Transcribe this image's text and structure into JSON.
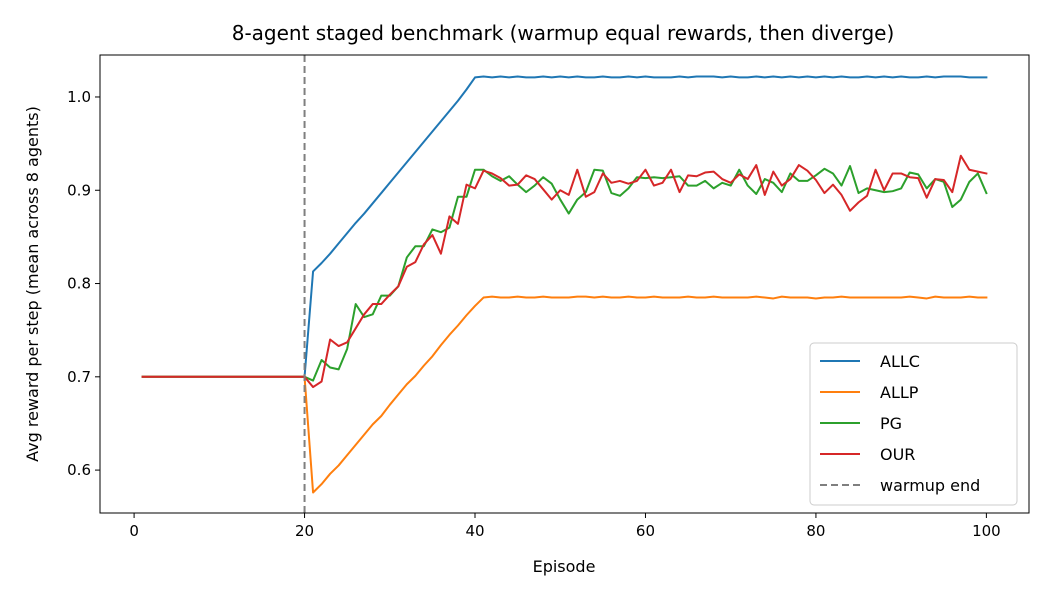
{
  "chart_data": {
    "type": "line",
    "title": "8-agent staged benchmark (warmup equal rewards, then diverge)",
    "xlabel": "Episode",
    "ylabel": "Avg reward per step (mean across 8 agents)",
    "xlim": [
      -4,
      105
    ],
    "ylim": [
      0.554,
      1.045
    ],
    "xticks": [
      0,
      20,
      40,
      60,
      80,
      100
    ],
    "yticks": [
      0.6,
      0.7,
      0.8,
      0.9,
      1.0
    ],
    "ytick_labels": [
      "0.6",
      "0.7",
      "0.8",
      "0.9",
      "1.0"
    ],
    "grid": false,
    "legend_position": "lower-right",
    "vline": {
      "x": 20,
      "label": "warmup end",
      "color": "#7f7f7f",
      "style": "dashed"
    },
    "series": [
      {
        "name": "ALLC",
        "color": "#1f77b4",
        "x": [
          1,
          2,
          3,
          4,
          5,
          6,
          7,
          8,
          9,
          10,
          11,
          12,
          13,
          14,
          15,
          16,
          17,
          18,
          19,
          20,
          21,
          22,
          23,
          24,
          25,
          26,
          27,
          28,
          29,
          30,
          31,
          32,
          33,
          34,
          35,
          36,
          37,
          38,
          39,
          40,
          41,
          42,
          43,
          44,
          45,
          46,
          47,
          48,
          49,
          50,
          51,
          52,
          53,
          54,
          55,
          56,
          57,
          58,
          59,
          60,
          61,
          62,
          63,
          64,
          65,
          66,
          67,
          68,
          69,
          70,
          71,
          72,
          73,
          74,
          75,
          76,
          77,
          78,
          79,
          80,
          81,
          82,
          83,
          84,
          85,
          86,
          87,
          88,
          89,
          90,
          91,
          92,
          93,
          94,
          95,
          96,
          97,
          98,
          99,
          100
        ],
        "y": [
          0.7,
          0.7,
          0.7,
          0.7,
          0.7,
          0.7,
          0.7,
          0.7,
          0.7,
          0.7,
          0.7,
          0.7,
          0.7,
          0.7,
          0.7,
          0.7,
          0.7,
          0.7,
          0.7,
          0.7,
          0.813,
          0.822,
          0.832,
          0.843,
          0.854,
          0.865,
          0.875,
          0.886,
          0.897,
          0.908,
          0.919,
          0.93,
          0.941,
          0.952,
          0.963,
          0.974,
          0.985,
          0.996,
          1.008,
          1.021,
          1.022,
          1.021,
          1.022,
          1.021,
          1.022,
          1.021,
          1.021,
          1.022,
          1.021,
          1.022,
          1.021,
          1.022,
          1.021,
          1.021,
          1.022,
          1.021,
          1.021,
          1.022,
          1.021,
          1.022,
          1.021,
          1.021,
          1.021,
          1.022,
          1.021,
          1.022,
          1.022,
          1.022,
          1.021,
          1.022,
          1.021,
          1.021,
          1.022,
          1.021,
          1.022,
          1.021,
          1.022,
          1.021,
          1.022,
          1.021,
          1.022,
          1.021,
          1.022,
          1.021,
          1.021,
          1.022,
          1.021,
          1.022,
          1.021,
          1.022,
          1.021,
          1.021,
          1.022,
          1.021,
          1.022,
          1.022,
          1.022,
          1.021,
          1.021,
          1.021
        ]
      },
      {
        "name": "ALLP",
        "color": "#ff7f0e",
        "x": [
          1,
          2,
          3,
          4,
          5,
          6,
          7,
          8,
          9,
          10,
          11,
          12,
          13,
          14,
          15,
          16,
          17,
          18,
          19,
          20,
          21,
          22,
          23,
          24,
          25,
          26,
          27,
          28,
          29,
          30,
          31,
          32,
          33,
          34,
          35,
          36,
          37,
          38,
          39,
          40,
          41,
          42,
          43,
          44,
          45,
          46,
          47,
          48,
          49,
          50,
          51,
          52,
          53,
          54,
          55,
          56,
          57,
          58,
          59,
          60,
          61,
          62,
          63,
          64,
          65,
          66,
          67,
          68,
          69,
          70,
          71,
          72,
          73,
          74,
          75,
          76,
          77,
          78,
          79,
          80,
          81,
          82,
          83,
          84,
          85,
          86,
          87,
          88,
          89,
          90,
          91,
          92,
          93,
          94,
          95,
          96,
          97,
          98,
          99,
          100
        ],
        "y": [
          0.7,
          0.7,
          0.7,
          0.7,
          0.7,
          0.7,
          0.7,
          0.7,
          0.7,
          0.7,
          0.7,
          0.7,
          0.7,
          0.7,
          0.7,
          0.7,
          0.7,
          0.7,
          0.7,
          0.7,
          0.576,
          0.585,
          0.596,
          0.605,
          0.616,
          0.627,
          0.638,
          0.649,
          0.658,
          0.67,
          0.681,
          0.692,
          0.701,
          0.712,
          0.722,
          0.734,
          0.745,
          0.755,
          0.766,
          0.776,
          0.785,
          0.786,
          0.785,
          0.785,
          0.786,
          0.785,
          0.785,
          0.786,
          0.785,
          0.785,
          0.785,
          0.786,
          0.786,
          0.785,
          0.786,
          0.785,
          0.785,
          0.786,
          0.785,
          0.785,
          0.786,
          0.785,
          0.785,
          0.785,
          0.786,
          0.785,
          0.785,
          0.786,
          0.785,
          0.785,
          0.785,
          0.785,
          0.786,
          0.785,
          0.784,
          0.786,
          0.785,
          0.785,
          0.785,
          0.784,
          0.785,
          0.785,
          0.786,
          0.785,
          0.785,
          0.785,
          0.785,
          0.785,
          0.785,
          0.785,
          0.786,
          0.785,
          0.784,
          0.786,
          0.785,
          0.785,
          0.785,
          0.786,
          0.785,
          0.785
        ]
      },
      {
        "name": "PG",
        "color": "#2ca02c",
        "x": [
          1,
          2,
          3,
          4,
          5,
          6,
          7,
          8,
          9,
          10,
          11,
          12,
          13,
          14,
          15,
          16,
          17,
          18,
          19,
          20,
          21,
          22,
          23,
          24,
          25,
          26,
          27,
          28,
          29,
          30,
          31,
          32,
          33,
          34,
          35,
          36,
          37,
          38,
          39,
          40,
          41,
          42,
          43,
          44,
          45,
          46,
          47,
          48,
          49,
          50,
          51,
          52,
          53,
          54,
          55,
          56,
          57,
          58,
          59,
          60,
          61,
          62,
          63,
          64,
          65,
          66,
          67,
          68,
          69,
          70,
          71,
          72,
          73,
          74,
          75,
          76,
          77,
          78,
          79,
          80,
          81,
          82,
          83,
          84,
          85,
          86,
          87,
          88,
          89,
          90,
          91,
          92,
          93,
          94,
          95,
          96,
          97,
          98,
          99,
          100
        ],
        "y": [
          0.7,
          0.7,
          0.7,
          0.7,
          0.7,
          0.7,
          0.7,
          0.7,
          0.7,
          0.7,
          0.7,
          0.7,
          0.7,
          0.7,
          0.7,
          0.7,
          0.7,
          0.7,
          0.7,
          0.7,
          0.696,
          0.718,
          0.71,
          0.708,
          0.73,
          0.778,
          0.764,
          0.767,
          0.787,
          0.787,
          0.797,
          0.828,
          0.84,
          0.84,
          0.858,
          0.855,
          0.86,
          0.893,
          0.893,
          0.922,
          0.922,
          0.915,
          0.91,
          0.915,
          0.906,
          0.898,
          0.905,
          0.914,
          0.907,
          0.89,
          0.875,
          0.89,
          0.898,
          0.922,
          0.921,
          0.897,
          0.894,
          0.902,
          0.914,
          0.913,
          0.914,
          0.913,
          0.914,
          0.915,
          0.905,
          0.905,
          0.91,
          0.902,
          0.908,
          0.905,
          0.922,
          0.905,
          0.896,
          0.912,
          0.908,
          0.898,
          0.918,
          0.91,
          0.91,
          0.916,
          0.923,
          0.918,
          0.905,
          0.926,
          0.897,
          0.902,
          0.9,
          0.898,
          0.899,
          0.902,
          0.919,
          0.917,
          0.902,
          0.912,
          0.909,
          0.882,
          0.89,
          0.909,
          0.918,
          0.897
        ]
      },
      {
        "name": "OUR",
        "color": "#d62728",
        "x": [
          1,
          2,
          3,
          4,
          5,
          6,
          7,
          8,
          9,
          10,
          11,
          12,
          13,
          14,
          15,
          16,
          17,
          18,
          19,
          20,
          21,
          22,
          23,
          24,
          25,
          26,
          27,
          28,
          29,
          30,
          31,
          32,
          33,
          34,
          35,
          36,
          37,
          38,
          39,
          40,
          41,
          42,
          43,
          44,
          45,
          46,
          47,
          48,
          49,
          50,
          51,
          52,
          53,
          54,
          55,
          56,
          57,
          58,
          59,
          60,
          61,
          62,
          63,
          64,
          65,
          66,
          67,
          68,
          69,
          70,
          71,
          72,
          73,
          74,
          75,
          76,
          77,
          78,
          79,
          80,
          81,
          82,
          83,
          84,
          85,
          86,
          87,
          88,
          89,
          90,
          91,
          92,
          93,
          94,
          95,
          96,
          97,
          98,
          99,
          100
        ],
        "y": [
          0.7,
          0.7,
          0.7,
          0.7,
          0.7,
          0.7,
          0.7,
          0.7,
          0.7,
          0.7,
          0.7,
          0.7,
          0.7,
          0.7,
          0.7,
          0.7,
          0.7,
          0.7,
          0.7,
          0.7,
          0.689,
          0.695,
          0.74,
          0.733,
          0.737,
          0.752,
          0.767,
          0.778,
          0.778,
          0.788,
          0.797,
          0.818,
          0.823,
          0.842,
          0.852,
          0.832,
          0.872,
          0.864,
          0.906,
          0.902,
          0.921,
          0.918,
          0.913,
          0.905,
          0.906,
          0.916,
          0.912,
          0.901,
          0.89,
          0.9,
          0.895,
          0.922,
          0.893,
          0.898,
          0.918,
          0.908,
          0.91,
          0.907,
          0.91,
          0.922,
          0.905,
          0.908,
          0.922,
          0.898,
          0.916,
          0.915,
          0.919,
          0.92,
          0.912,
          0.908,
          0.917,
          0.912,
          0.927,
          0.895,
          0.92,
          0.905,
          0.912,
          0.927,
          0.921,
          0.911,
          0.897,
          0.906,
          0.895,
          0.878,
          0.887,
          0.894,
          0.922,
          0.9,
          0.918,
          0.918,
          0.914,
          0.913,
          0.892,
          0.912,
          0.911,
          0.898,
          0.937,
          0.922,
          0.92,
          0.918
        ]
      }
    ]
  }
}
